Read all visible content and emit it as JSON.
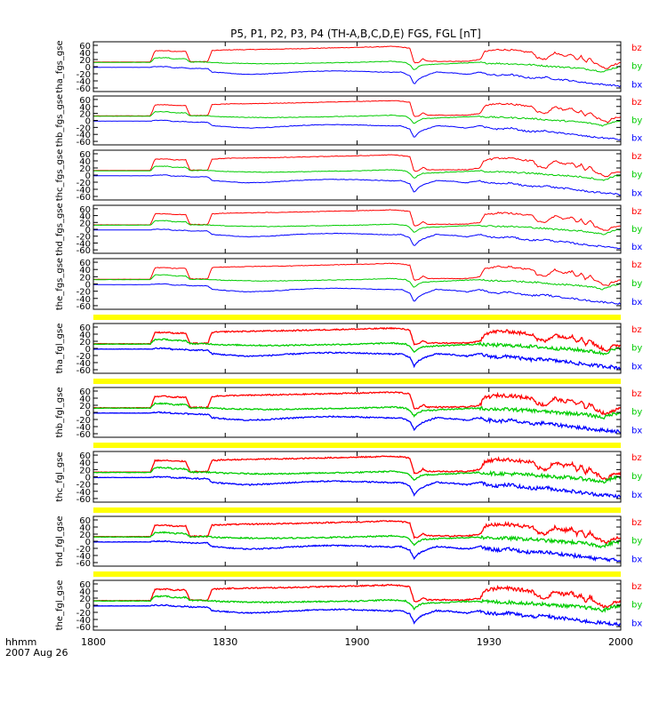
{
  "chart_data": {
    "type": "line",
    "title": "P5, P1, P2, P3, P4 (TH-A,B,C,D,E) FGS, FGL [nT]",
    "x_axis": {
      "label_lines": [
        "hhmm",
        "2007 Aug 26"
      ],
      "ticks": [
        "1800",
        "1830",
        "1900",
        "1930",
        "2000"
      ],
      "tick_values": [
        0,
        30,
        60,
        90,
        120
      ],
      "range_minutes": [
        0,
        120
      ]
    },
    "y_axis": {
      "range": [
        -70,
        70
      ],
      "tick_values": [
        -60,
        -40,
        -20,
        0,
        20,
        40,
        60
      ],
      "tick_labels": [
        "-60",
        "-40",
        "-20",
        "0",
        "20",
        "40",
        "60"
      ]
    },
    "series_colors": {
      "bz": "#ff0000",
      "by": "#00cc00",
      "bx": "#0000ff"
    },
    "legend": [
      "bz",
      "by",
      "bx"
    ],
    "highlight_color": "#ffff00",
    "panels": [
      {
        "label": "tha_fgs_gse",
        "kind": "fgs"
      },
      {
        "label": "thb_fgs_gse",
        "kind": "fgs"
      },
      {
        "label": "thc_fgs_gse",
        "kind": "fgs"
      },
      {
        "label": "thd_fgs_gse",
        "kind": "fgs"
      },
      {
        "label": "the_fgs_gse",
        "kind": "fgs"
      },
      {
        "label": "tha_fgl_gse",
        "kind": "fgl"
      },
      {
        "label": "thb_fgl_gse",
        "kind": "fgl"
      },
      {
        "label": "thc_fgl_gse",
        "kind": "fgl"
      },
      {
        "label": "thd_fgl_gse",
        "kind": "fgl"
      },
      {
        "label": "the_fgl_gse",
        "kind": "fgl"
      }
    ],
    "series": [
      {
        "name": "bz",
        "points": [
          [
            0,
            13
          ],
          [
            13,
            13
          ],
          [
            14,
            45
          ],
          [
            17,
            45
          ],
          [
            18,
            43
          ],
          [
            21,
            43
          ],
          [
            22,
            14
          ],
          [
            26,
            14
          ],
          [
            27,
            45
          ],
          [
            30,
            47
          ],
          [
            35,
            48
          ],
          [
            45,
            50
          ],
          [
            55,
            53
          ],
          [
            63,
            55
          ],
          [
            68,
            57
          ],
          [
            70,
            55
          ],
          [
            72,
            52
          ],
          [
            73,
            10
          ],
          [
            74,
            12
          ],
          [
            75,
            22
          ],
          [
            76,
            15
          ],
          [
            80,
            15
          ],
          [
            85,
            15
          ],
          [
            88,
            20
          ],
          [
            89,
            42
          ],
          [
            92,
            48
          ],
          [
            95,
            47
          ],
          [
            98,
            42
          ],
          [
            100,
            40
          ],
          [
            101,
            25
          ],
          [
            103,
            20
          ],
          [
            104,
            30
          ],
          [
            105,
            40
          ],
          [
            107,
            30
          ],
          [
            109,
            35
          ],
          [
            110,
            20
          ],
          [
            111,
            30
          ],
          [
            112,
            12
          ],
          [
            113,
            25
          ],
          [
            114,
            10
          ],
          [
            115,
            5
          ],
          [
            116,
            -2
          ],
          [
            117,
            -5
          ],
          [
            118,
            5
          ],
          [
            120,
            10
          ]
        ]
      },
      {
        "name": "by",
        "points": [
          [
            0,
            12
          ],
          [
            13,
            12
          ],
          [
            14,
            25
          ],
          [
            17,
            25
          ],
          [
            18,
            22
          ],
          [
            21,
            22
          ],
          [
            22,
            13
          ],
          [
            26,
            13
          ],
          [
            27,
            12
          ],
          [
            30,
            10
          ],
          [
            40,
            8
          ],
          [
            50,
            10
          ],
          [
            60,
            12
          ],
          [
            68,
            15
          ],
          [
            71,
            12
          ],
          [
            72,
            5
          ],
          [
            73,
            -10
          ],
          [
            74,
            0
          ],
          [
            75,
            5
          ],
          [
            80,
            8
          ],
          [
            88,
            12
          ],
          [
            89,
            10
          ],
          [
            95,
            8
          ],
          [
            100,
            5
          ],
          [
            105,
            0
          ],
          [
            108,
            -2
          ],
          [
            111,
            -5
          ],
          [
            113,
            -8
          ],
          [
            115,
            -12
          ],
          [
            116,
            -15
          ],
          [
            117,
            -10
          ],
          [
            118,
            -5
          ],
          [
            120,
            0
          ]
        ]
      },
      {
        "name": "bx",
        "points": [
          [
            0,
            -2
          ],
          [
            13,
            -2
          ],
          [
            14,
            0
          ],
          [
            17,
            0
          ],
          [
            18,
            -3
          ],
          [
            21,
            -3
          ],
          [
            22,
            -5
          ],
          [
            26,
            -5
          ],
          [
            27,
            -15
          ],
          [
            30,
            -18
          ],
          [
            35,
            -22
          ],
          [
            40,
            -20
          ],
          [
            45,
            -16
          ],
          [
            50,
            -13
          ],
          [
            55,
            -12
          ],
          [
            60,
            -13
          ],
          [
            65,
            -15
          ],
          [
            68,
            -16
          ],
          [
            70,
            -15
          ],
          [
            72,
            -25
          ],
          [
            73,
            -50
          ],
          [
            74,
            -35
          ],
          [
            75,
            -28
          ],
          [
            78,
            -15
          ],
          [
            82,
            -18
          ],
          [
            85,
            -22
          ],
          [
            88,
            -15
          ],
          [
            89,
            -20
          ],
          [
            92,
            -25
          ],
          [
            95,
            -22
          ],
          [
            98,
            -30
          ],
          [
            100,
            -32
          ],
          [
            103,
            -30
          ],
          [
            105,
            -35
          ],
          [
            108,
            -38
          ],
          [
            110,
            -42
          ],
          [
            112,
            -45
          ],
          [
            114,
            -48
          ],
          [
            116,
            -50
          ],
          [
            118,
            -52
          ],
          [
            120,
            -55
          ]
        ]
      }
    ]
  }
}
